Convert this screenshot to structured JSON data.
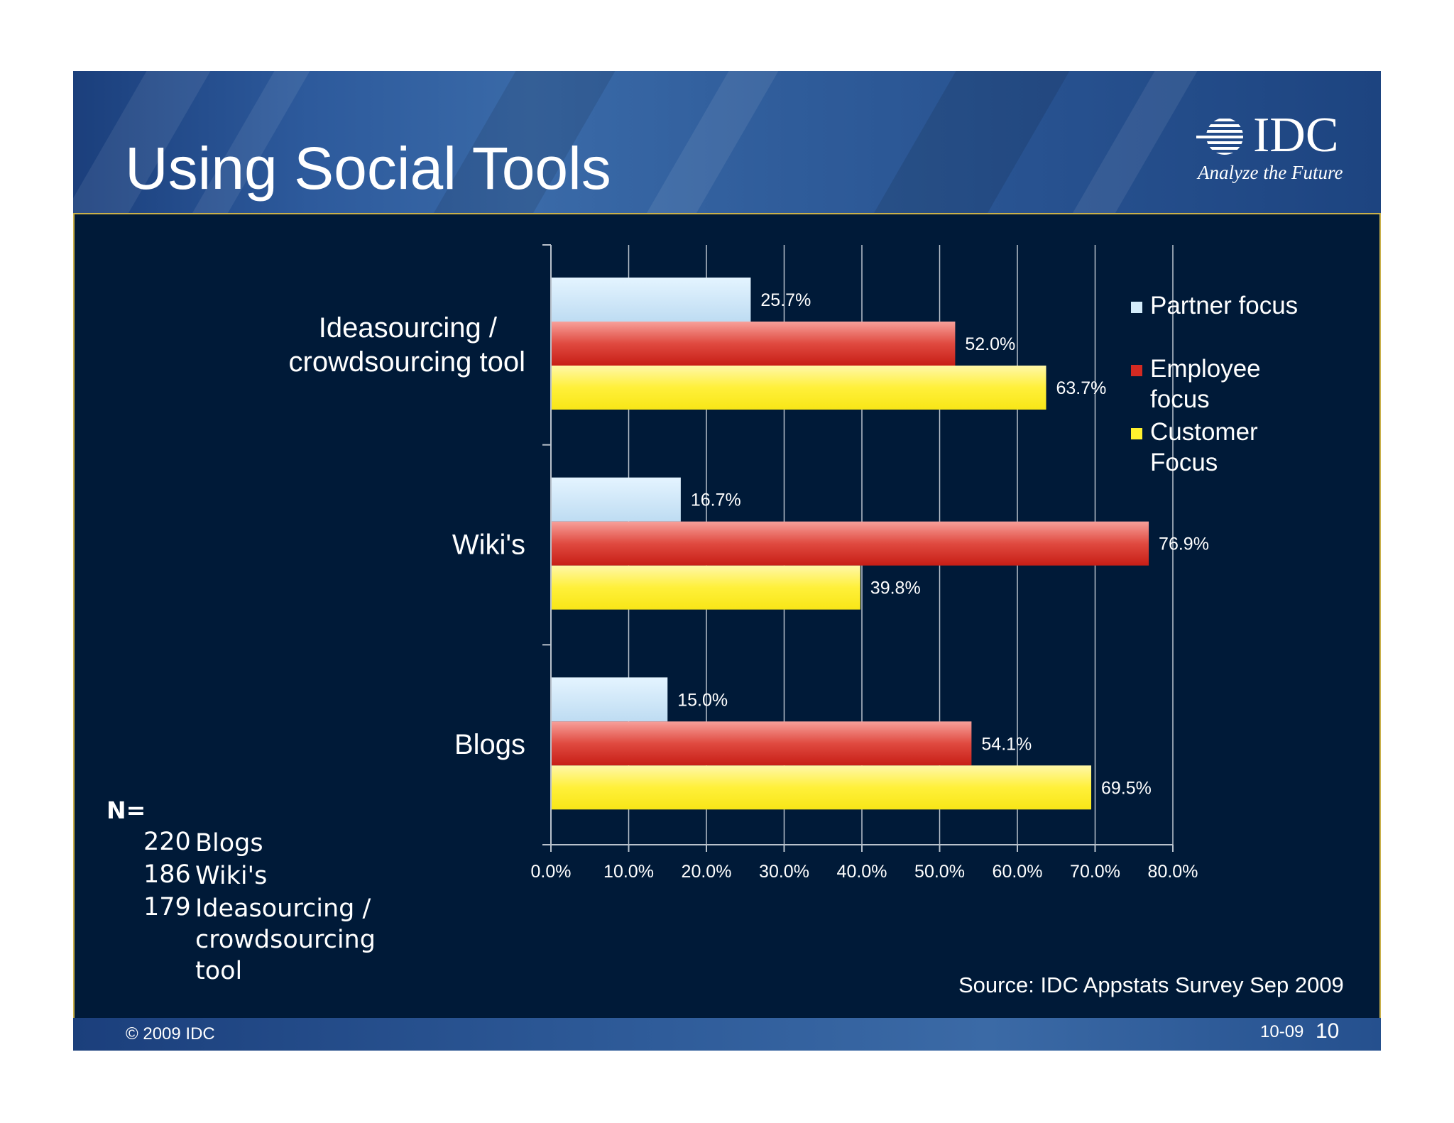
{
  "slide": {
    "title": "Using Social Tools",
    "logo": {
      "text": "IDC",
      "tagline": "Analyze the Future"
    },
    "footer": {
      "copyright": "© 2009 IDC",
      "date": "10-09",
      "page": "10"
    },
    "source": "Source: IDC Appstats Survey Sep 2009",
    "sample": {
      "title": "N=",
      "rows": [
        {
          "count": "220",
          "label": "Blogs"
        },
        {
          "count": "186",
          "label": "Wiki's"
        },
        {
          "count": "179",
          "label": "Ideasourcing /\ncrowdsourcing\ntool"
        }
      ]
    }
  },
  "colors": {
    "panel": "#001a38",
    "panel_border": "#c9b04a",
    "partner": "#d4ecfa",
    "employee": "#d42a22",
    "customer": "#fff12e"
  },
  "chart_data": {
    "type": "bar",
    "orientation": "horizontal",
    "categories": [
      "Ideasourcing / crowdsourcing tool",
      "Wiki's",
      "Blogs"
    ],
    "category_lines": [
      [
        "Ideasourcing /",
        "crowdsourcing tool"
      ],
      [
        "Wiki's"
      ],
      [
        "Blogs"
      ]
    ],
    "series": [
      {
        "name": "Partner focus",
        "legend_lines": [
          "Partner focus"
        ],
        "values": [
          25.7,
          16.7,
          15.0
        ],
        "labels": [
          "25.7%",
          "16.7%",
          "15.0%"
        ]
      },
      {
        "name": "Employee focus",
        "legend_lines": [
          "Employee",
          "focus"
        ],
        "values": [
          52.0,
          76.9,
          54.1
        ],
        "labels": [
          "52.0%",
          "76.9%",
          "54.1%"
        ]
      },
      {
        "name": "Customer Focus",
        "legend_lines": [
          "Customer",
          "Focus"
        ],
        "values": [
          63.7,
          39.8,
          69.5
        ],
        "labels": [
          "63.7%",
          "39.8%",
          "69.5%"
        ]
      }
    ],
    "xlim": [
      0,
      80
    ],
    "x_ticks": [
      "0.0%",
      "10.0%",
      "20.0%",
      "30.0%",
      "40.0%",
      "50.0%",
      "60.0%",
      "70.0%",
      "80.0%"
    ],
    "grid": true,
    "legend": "right",
    "xlabel": "",
    "ylabel": ""
  }
}
